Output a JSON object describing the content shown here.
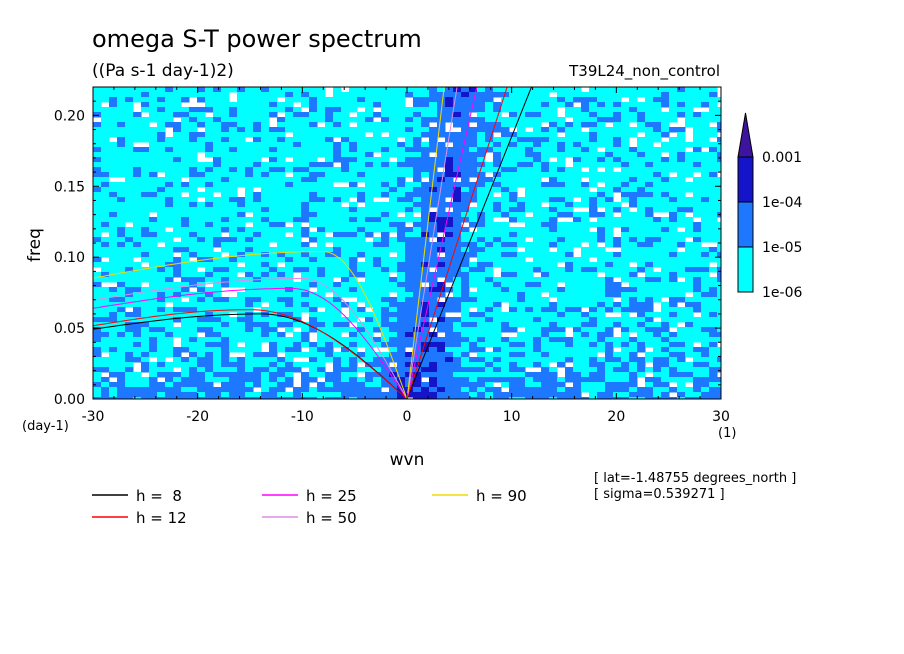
{
  "chart_data": {
    "type": "heatmap",
    "title": "omega S-T power spectrum",
    "subtitle": "((Pa s-1 day-1)2)",
    "run_label": "T39L24_non_control",
    "xlabel": "wvn",
    "ylabel": "freq",
    "x_unit": "(1)",
    "y_unit": "(day-1)",
    "xlim": [
      -30,
      30
    ],
    "ylim": [
      0,
      0.22
    ],
    "xticks": [
      -30,
      -20,
      -10,
      0,
      10,
      20,
      30
    ],
    "xtick_labels": [
      "-30",
      "-20",
      "-10",
      "0",
      "10",
      "20",
      "30"
    ],
    "yticks": [
      0,
      0.05,
      0.1,
      0.15,
      0.2
    ],
    "ytick_labels": [
      "0.00",
      "0.05",
      "0.10",
      "0.15",
      "0.20"
    ],
    "contour_levels": {
      "labels": [
        "1e-06",
        "1e-05",
        "1e-04",
        "0.001"
      ],
      "colors": [
        "#00ffff",
        "#1e78ff",
        "#1414c8",
        "#3c14a0"
      ]
    },
    "dispersion_curves": [
      {
        "name": "h =  8",
        "color": "#000000"
      },
      {
        "name": "h = 12",
        "color": "#ff0000"
      },
      {
        "name": "h = 25",
        "color": "#ff00ff"
      },
      {
        "name": "h = 50",
        "color": "#e08ce6"
      },
      {
        "name": "h = 90",
        "color": "#f0dc00"
      }
    ],
    "annotations": [
      "[ lat=-1.48755 degrees_north ]",
      "[ sigma=0.539271 ]"
    ]
  },
  "colors": {
    "background": "#ffffff",
    "frame": "#000000"
  }
}
